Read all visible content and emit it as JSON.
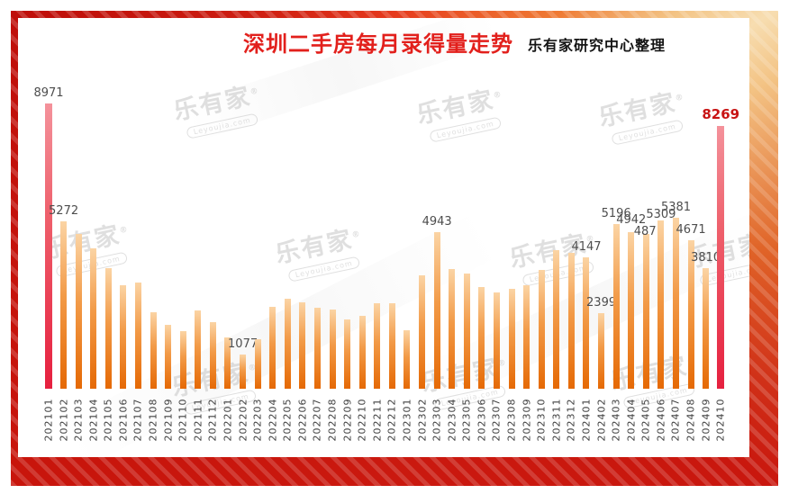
{
  "header": {
    "title": "深圳二手房每月录得量走势",
    "subtitle": "乐有家研究中心整理"
  },
  "watermark": {
    "brand": "乐有家",
    "domain": "Leyoujia.com",
    "registered": "®"
  },
  "colors": {
    "title_red": "#e2201c",
    "bar_orange_top": "#fbd4a4",
    "bar_orange_bottom": "#e56905",
    "bar_red_top": "#f4929b",
    "bar_red_bottom": "#e6203f",
    "value_label_gray": "#4d4d4d",
    "highlight_label_red": "#c81414",
    "frame_dark_red": "#c5130c",
    "frame_gold": "#f7ddb0"
  },
  "chart_data": {
    "type": "bar",
    "title": "深圳二手房每月录得量走势",
    "source_note": "乐有家研究中心整理",
    "xlabel": "",
    "ylabel": "",
    "ylim": [
      0,
      9200
    ],
    "grid": false,
    "legend": "none",
    "categories": [
      "202101",
      "202102",
      "202103",
      "202104",
      "202105",
      "202106",
      "202107",
      "202108",
      "202109",
      "202110",
      "202111",
      "202112",
      "202201",
      "202202",
      "202203",
      "202204",
      "202205",
      "202206",
      "202207",
      "202208",
      "202209",
      "202210",
      "202211",
      "202212",
      "202301",
      "202302",
      "202303",
      "202304",
      "202305",
      "202306",
      "202307",
      "202308",
      "202309",
      "202310",
      "202311",
      "202312",
      "202401",
      "202402",
      "202403",
      "202404",
      "202405",
      "202406",
      "202407",
      "202408",
      "202409",
      "202410"
    ],
    "values": [
      8971,
      5272,
      4870,
      4420,
      3800,
      3250,
      3360,
      2420,
      2010,
      1830,
      2460,
      2100,
      1630,
      1077,
      1560,
      2580,
      2830,
      2720,
      2560,
      2500,
      2180,
      2310,
      2700,
      2700,
      1840,
      3570,
      4943,
      3780,
      3630,
      3210,
      3030,
      3150,
      3250,
      3730,
      4370,
      4270,
      4147,
      2399,
      5196,
      4942,
      4871,
      5309,
      5381,
      4671,
      3810,
      8269
    ],
    "data_labels": {
      "202101": "8971",
      "202102": "5272",
      "202202": "1077",
      "202303": "4943",
      "202401": "4147",
      "202402": "2399",
      "202403": "5196",
      "202404": "4942",
      "202405": "4871",
      "202406": "5309",
      "202407": "5381",
      "202408": "4671",
      "202409": "3810",
      "202410": "8269"
    },
    "highlighted_categories": [
      "202101",
      "202410"
    ]
  }
}
